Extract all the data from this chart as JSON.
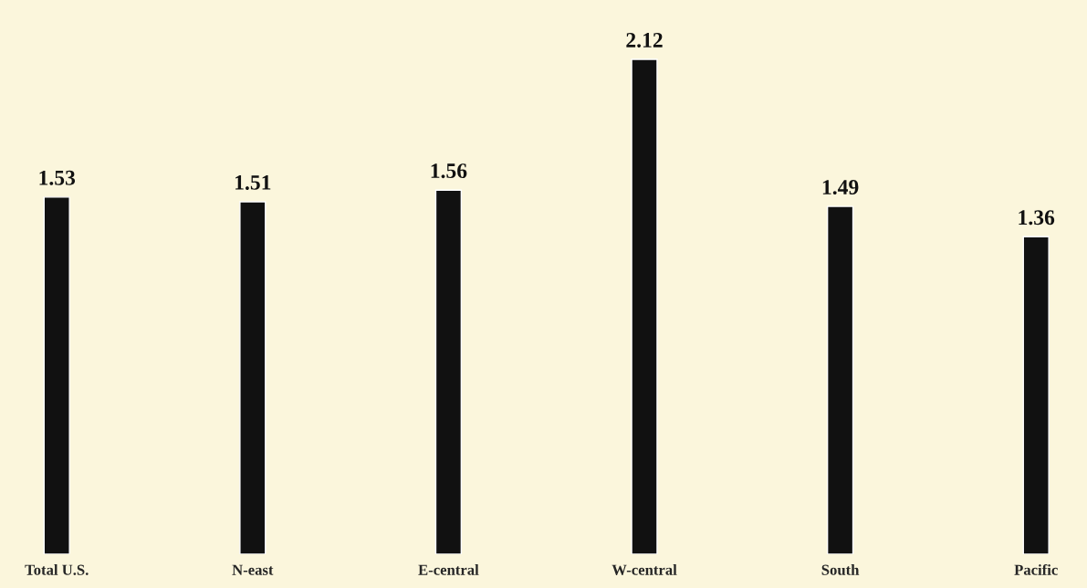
{
  "chart_data": {
    "type": "bar",
    "categories": [
      "Total U.S.",
      "N-east",
      "E-central",
      "W-central",
      "South",
      "Pacific"
    ],
    "values": [
      1.53,
      1.51,
      1.56,
      2.12,
      1.49,
      1.36
    ],
    "color": "#111111",
    "data_labels": true,
    "grid": false,
    "legend": false
  }
}
